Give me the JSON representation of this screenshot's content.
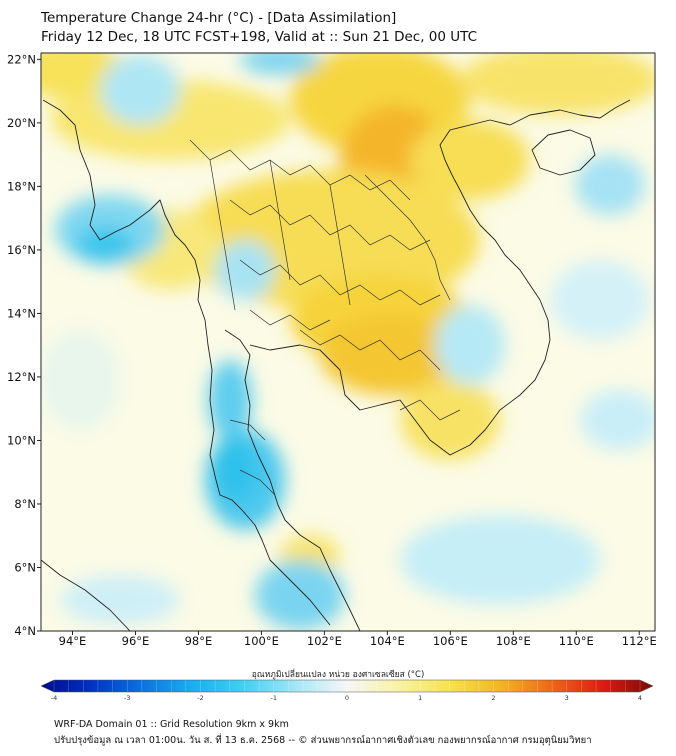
{
  "title_line1": "Temperature Change 24-hr (°C) - [Data Assimilation]",
  "title_line2": "Friday 12 Dec, 18 UTC FCST+198, Valid at :: Sun 21 Dec, 00 UTC",
  "map": {
    "lon_range": [
      93,
      112.5
    ],
    "lat_range": [
      4,
      22.2
    ],
    "lon_ticks": [
      "94°E",
      "96°E",
      "98°E",
      "100°E",
      "102°E",
      "104°E",
      "106°E",
      "108°E",
      "110°E",
      "112°E"
    ],
    "lat_ticks": [
      "22°N",
      "20°N",
      "18°N",
      "16°N",
      "14°N",
      "12°N",
      "10°N",
      "8°N",
      "6°N",
      "4°N"
    ],
    "field_colors": {
      "ocean_base": "#fbfbe6",
      "warm": "#f5d335",
      "warmer": "#f3a61e",
      "cool": "#7fd8f0",
      "cooler": "#2fc2eb",
      "border_line": "#222222"
    }
  },
  "colorbar": {
    "label": "อุณหภูมิเปลี่ยนแปลง หน่วย องศาเซลเซียส (°C)",
    "ticks": [
      "-4",
      "-3",
      "-2",
      "-1",
      "0",
      "1",
      "2",
      "3",
      "4"
    ],
    "range": [
      -4,
      4
    ]
  },
  "footer_line1": "WRF-DA Domain 01 :: Grid Resolution 9km x 9km",
  "footer_line2": "ปรับปรุงข้อมูล ณ เวลา 01:00น. วัน ส. ที่ 13 ธ.ค. 2568 -- © ส่วนพยากรณ์อากาศเชิงตัวเลข กองพยากรณ์อากาศ กรมอุตุนิยมวิทยา"
}
